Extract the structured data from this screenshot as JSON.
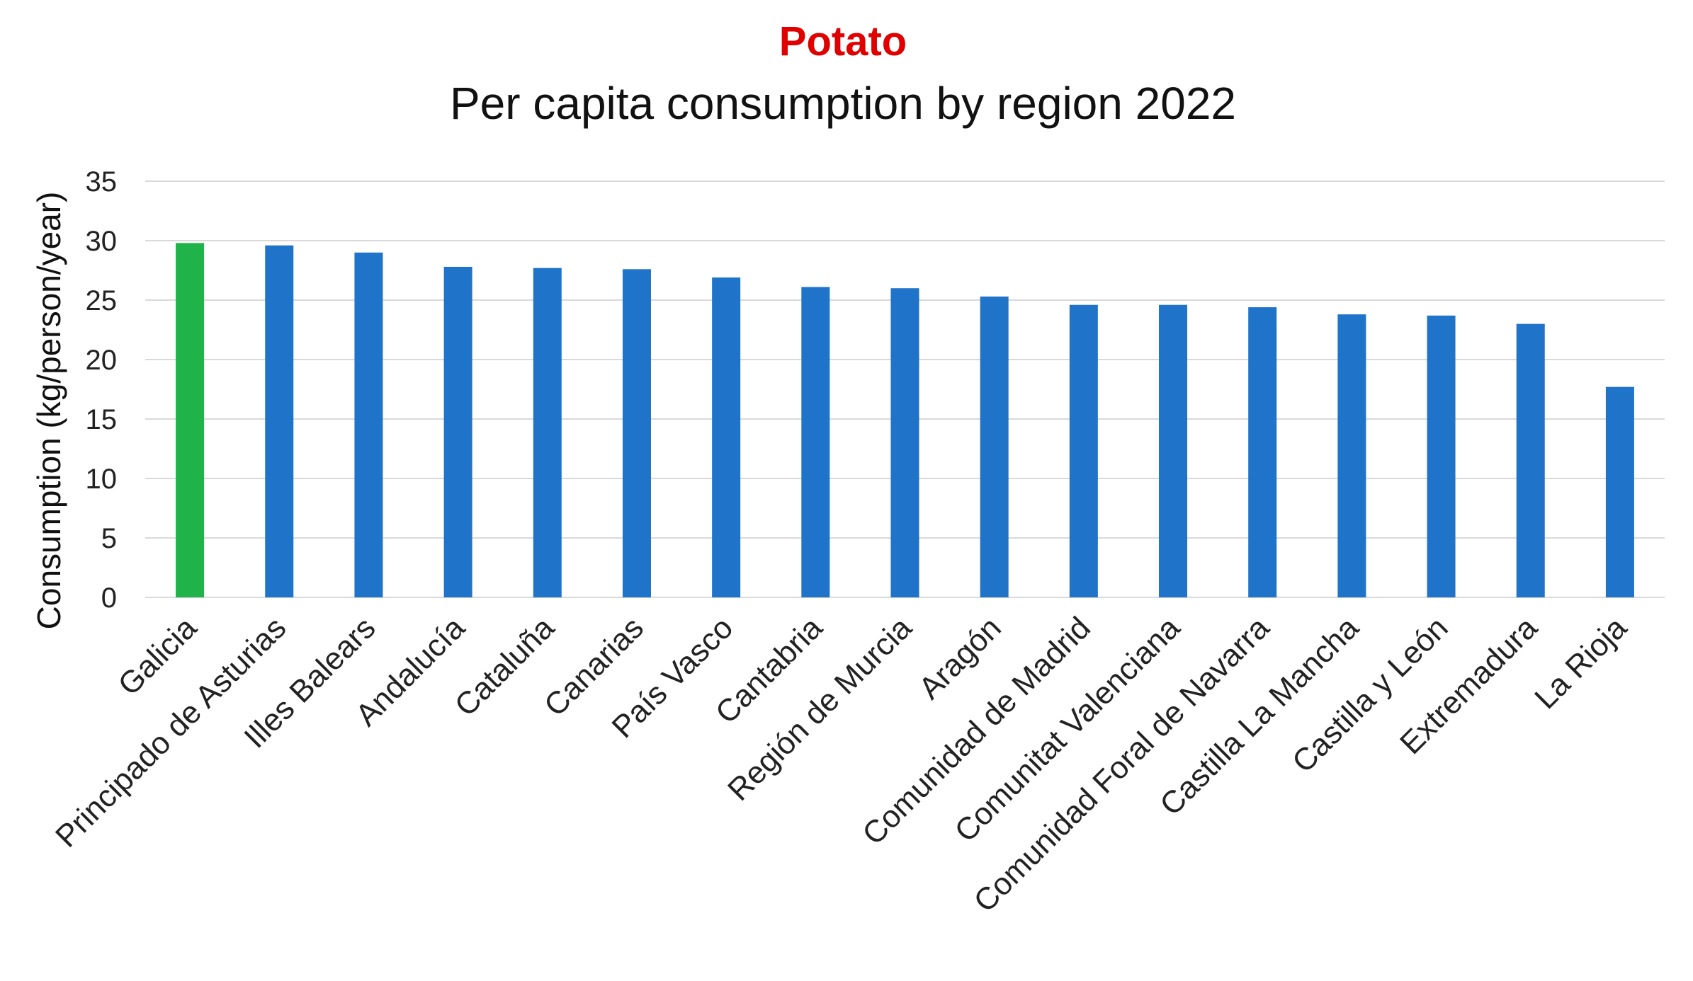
{
  "chart_data": {
    "type": "bar",
    "title": "Potato",
    "subtitle": "Per capita consumption by region 2022",
    "xlabel": "",
    "ylabel": "Consumption (kg/person/year)",
    "ylim": [
      0,
      35
    ],
    "yticks": [
      "0",
      "5",
      "10",
      "15",
      "20",
      "25",
      "30",
      "35"
    ],
    "grid": true,
    "categories": [
      "Galicia",
      "Principado de Asturias",
      "Illes Balears",
      "Andalucía",
      "Cataluña",
      "Canarias",
      "País Vasco",
      "Cantabria",
      "Región de Murcia",
      "Aragón",
      "Comunidad de Madrid",
      "Comunitat Valenciana",
      "Comunidad Foral de Navarra",
      "Castilla La Mancha",
      "Castilla y León",
      "Extremadura",
      "La Rioja"
    ],
    "values": [
      29.8,
      29.6,
      29.0,
      27.8,
      27.7,
      27.6,
      26.9,
      26.1,
      26.0,
      25.3,
      24.6,
      24.6,
      24.4,
      23.8,
      23.7,
      23.0,
      17.7
    ],
    "highlight_index": 0,
    "colors": {
      "title": "#e00000",
      "bar": "#1f73c9",
      "highlight": "#1fb34a",
      "grid": "#d9d9d9"
    }
  }
}
